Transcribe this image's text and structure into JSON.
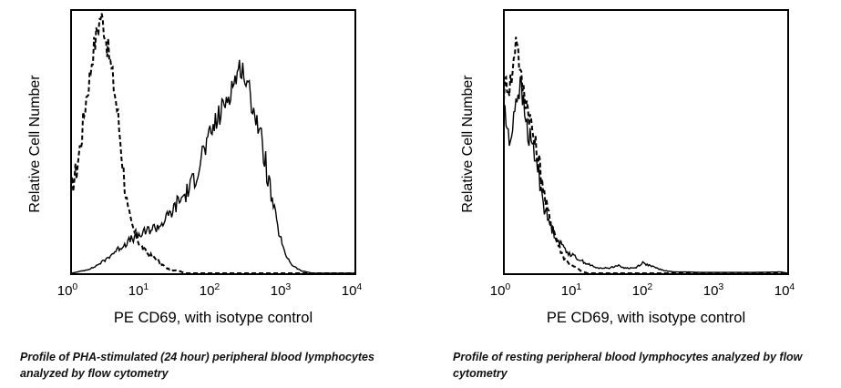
{
  "chart_data": [
    {
      "type": "line",
      "chart_kind": "flow cytometry histogram overlay",
      "title": "",
      "xlabel": "PE CD69, with isotype control",
      "ylabel": "Relative Cell Number",
      "xscale": "log",
      "xlim": [
        1,
        10000
      ],
      "ylim": [
        0,
        1
      ],
      "x_ticks": [
        {
          "base": "10",
          "exp": "0"
        },
        {
          "base": "10",
          "exp": "1"
        },
        {
          "base": "10",
          "exp": "2"
        },
        {
          "base": "10",
          "exp": "3"
        },
        {
          "base": "10",
          "exp": "4"
        }
      ],
      "grid": false,
      "legend": "none",
      "caption": "Profile of PHA-stimulated (24 hour) peripheral blood lymphocytes analyzed by flow cytometry",
      "series": [
        {
          "name": "isotype control",
          "style": "dashed",
          "x": [
            1.0,
            1.2,
            1.4,
            1.6,
            1.8,
            2.0,
            2.3,
            2.6,
            2.9,
            3.2,
            3.6,
            4.0,
            4.5,
            5.0,
            5.6,
            6.3,
            7.0,
            8.0,
            9.0,
            10.5,
            12.5,
            15,
            18,
            22,
            27,
            33,
            40,
            50,
            70,
            100,
            300,
            1000,
            10000
          ],
          "y": [
            0.32,
            0.4,
            0.52,
            0.66,
            0.74,
            0.84,
            0.92,
            0.99,
            0.95,
            0.88,
            0.8,
            0.72,
            0.62,
            0.5,
            0.36,
            0.24,
            0.19,
            0.15,
            0.12,
            0.09,
            0.07,
            0.06,
            0.04,
            0.02,
            0.01,
            0.01,
            0.0,
            0.0,
            0.0,
            0.0,
            0.0,
            0.0,
            0.0
          ]
        },
        {
          "name": "PE CD69",
          "style": "solid",
          "x": [
            1.0,
            1.5,
            2.0,
            3.0,
            4.0,
            5.0,
            7.0,
            10,
            13,
            17,
            22,
            27,
            33,
            40,
            50,
            60,
            70,
            85,
            100,
            130,
            160,
            200,
            250,
            300,
            370,
            450,
            550,
            650,
            800,
            1000,
            1300,
            1700,
            2500,
            10000
          ],
          "y": [
            0.0,
            0.01,
            0.02,
            0.05,
            0.08,
            0.1,
            0.13,
            0.15,
            0.17,
            0.18,
            0.21,
            0.24,
            0.28,
            0.3,
            0.34,
            0.4,
            0.46,
            0.5,
            0.56,
            0.62,
            0.68,
            0.74,
            0.8,
            0.72,
            0.64,
            0.54,
            0.42,
            0.3,
            0.18,
            0.08,
            0.03,
            0.01,
            0.0,
            0.0
          ]
        }
      ]
    },
    {
      "type": "line",
      "chart_kind": "flow cytometry histogram overlay",
      "title": "",
      "xlabel": "PE CD69, with isotype control",
      "ylabel": "Relative Cell Number",
      "xscale": "log",
      "xlim": [
        1,
        10000
      ],
      "ylim": [
        0,
        1
      ],
      "x_ticks": [
        {
          "base": "10",
          "exp": "0"
        },
        {
          "base": "10",
          "exp": "1"
        },
        {
          "base": "10",
          "exp": "2"
        },
        {
          "base": "10",
          "exp": "3"
        },
        {
          "base": "10",
          "exp": "4"
        }
      ],
      "grid": false,
      "legend": "none",
      "caption": "Profile of resting peripheral blood lymphocytes analyzed by flow cytometry",
      "series": [
        {
          "name": "isotype control",
          "style": "dashed",
          "x": [
            1.0,
            1.1,
            1.2,
            1.35,
            1.5,
            1.7,
            1.9,
            2.1,
            2.4,
            2.7,
            3.0,
            3.4,
            3.8,
            4.3,
            4.8,
            5.4,
            6.0,
            7.0,
            8.0,
            9.0,
            10.5,
            12,
            15,
            20,
            30,
            50,
            100,
            10000
          ],
          "y": [
            0.7,
            0.74,
            0.72,
            0.78,
            0.94,
            0.76,
            0.7,
            0.66,
            0.58,
            0.5,
            0.44,
            0.38,
            0.28,
            0.22,
            0.18,
            0.14,
            0.1,
            0.06,
            0.04,
            0.03,
            0.02,
            0.01,
            0.0,
            0.0,
            0.0,
            0.0,
            0.0,
            0.0
          ]
        },
        {
          "name": "PE CD69",
          "style": "solid",
          "x": [
            1.0,
            1.1,
            1.2,
            1.35,
            1.5,
            1.7,
            1.9,
            2.1,
            2.4,
            2.7,
            3.0,
            3.4,
            3.8,
            4.3,
            4.8,
            5.4,
            6.0,
            7.0,
            8.0,
            9.0,
            10.5,
            12,
            14,
            17,
            20,
            25,
            30,
            40,
            50,
            70,
            90,
            110,
            140,
            180,
            250,
            400,
            600,
            1500,
            3000,
            8000,
            10000
          ],
          "y": [
            0.66,
            0.56,
            0.48,
            0.6,
            0.68,
            0.72,
            0.64,
            0.56,
            0.5,
            0.46,
            0.4,
            0.32,
            0.24,
            0.2,
            0.17,
            0.14,
            0.12,
            0.1,
            0.08,
            0.07,
            0.06,
            0.05,
            0.04,
            0.03,
            0.02,
            0.02,
            0.02,
            0.03,
            0.02,
            0.02,
            0.04,
            0.03,
            0.02,
            0.01,
            0.005,
            0.005,
            0.003,
            0.003,
            0.003,
            0.005,
            0.0
          ]
        }
      ]
    }
  ]
}
